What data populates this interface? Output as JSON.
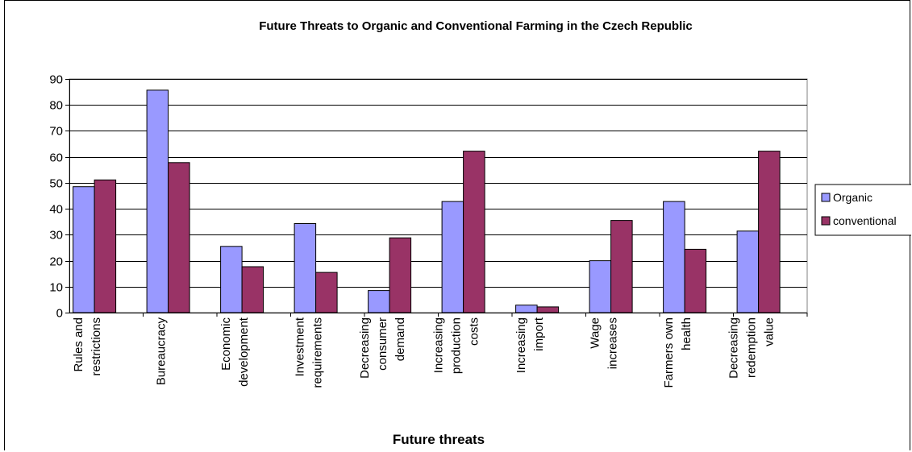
{
  "chart_data": {
    "type": "bar",
    "title": "Future Threats to Organic and Conventional Farming in the Czech Republic",
    "xlabel": "Future threats",
    "ylabel": "",
    "ylim": [
      0,
      90
    ],
    "yticks": [
      0,
      10,
      20,
      30,
      40,
      50,
      60,
      70,
      80,
      90
    ],
    "grid": true,
    "legend_position": "right",
    "categories": [
      [
        "Rules and",
        "restrictions"
      ],
      [
        "Bureaucracy"
      ],
      [
        "Economic",
        "development"
      ],
      [
        "Investment",
        "requirements"
      ],
      [
        "Decreasing",
        "consumer",
        "demand"
      ],
      [
        "Increasing",
        "production",
        "costs"
      ],
      [
        "Increasing",
        "import"
      ],
      [
        "Wage",
        "increases"
      ],
      [
        "Farmers own",
        "health"
      ],
      [
        "Decreasing",
        "redemption",
        "value"
      ]
    ],
    "series": [
      {
        "name": "Organic",
        "color": "#9999ff",
        "values": [
          48.5,
          85.7,
          25.5,
          34.3,
          8.5,
          42.8,
          2.9,
          20.0,
          42.8,
          31.4
        ]
      },
      {
        "name": "conventional",
        "color": "#993366",
        "values": [
          51.1,
          57.8,
          17.7,
          15.5,
          28.8,
          62.2,
          2.2,
          35.5,
          24.4,
          62.2
        ]
      }
    ]
  }
}
